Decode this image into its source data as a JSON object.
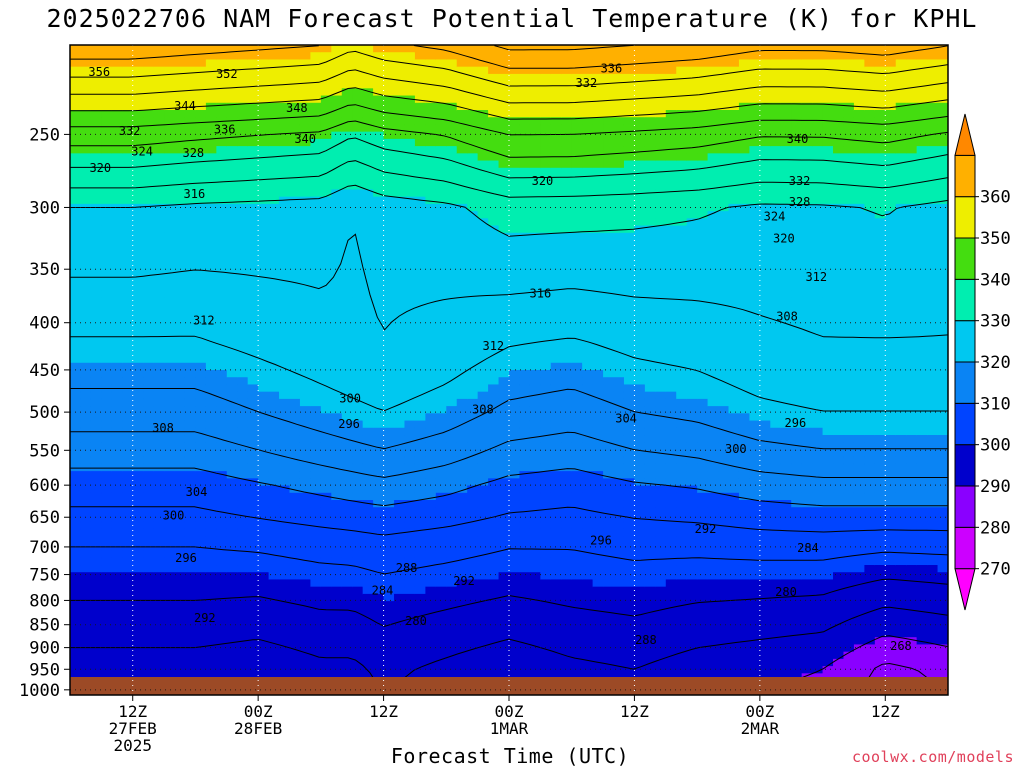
{
  "chart_data": {
    "type": "heatmap",
    "title": "2025022706 NAM Forecast Potential Temperature (K) for KPHL",
    "xlabel": "Forecast Time (UTC)",
    "ylabel": "",
    "credit": "coolwx.com/models",
    "x_ticks": [
      {
        "hour": 6,
        "lines": [
          "12Z",
          "27FEB",
          "2025"
        ]
      },
      {
        "hour": 18,
        "lines": [
          "00Z",
          "28FEB"
        ]
      },
      {
        "hour": 30,
        "lines": [
          "12Z"
        ]
      },
      {
        "hour": 42,
        "lines": [
          "00Z",
          "1MAR"
        ]
      },
      {
        "hour": 54,
        "lines": [
          "12Z"
        ]
      },
      {
        "hour": 66,
        "lines": [
          "00Z",
          "2MAR"
        ]
      },
      {
        "hour": 78,
        "lines": [
          "12Z"
        ]
      }
    ],
    "x_range": [
      0,
      84
    ],
    "y_ticks": [
      250,
      300,
      350,
      400,
      450,
      500,
      550,
      600,
      650,
      700,
      750,
      800,
      850,
      900,
      950,
      1000
    ],
    "y_range_hpa": [
      200,
      1013
    ],
    "y_scale": "log",
    "grid": true,
    "colorbar": {
      "levels": [
        270,
        280,
        290,
        300,
        310,
        320,
        330,
        340,
        350,
        360
      ],
      "colors": [
        "#ff00ff",
        "#cc00ff",
        "#8a00ff",
        "#0000cc",
        "#0044ff",
        "#0a84f4",
        "#00c8f0",
        "#00eeb0",
        "#44dd10",
        "#eeee00",
        "#ffb000",
        "#ff8800"
      ],
      "extend": "both"
    },
    "contour_labels": [
      {
        "value": "356",
        "x": 2.8,
        "p": 214
      },
      {
        "value": "352",
        "x": 15,
        "p": 215
      },
      {
        "value": "344",
        "x": 11,
        "p": 233
      },
      {
        "value": "348",
        "x": 21.7,
        "p": 234
      },
      {
        "value": "336",
        "x": 14.8,
        "p": 247
      },
      {
        "value": "332",
        "x": 5.7,
        "p": 248
      },
      {
        "value": "340",
        "x": 22.5,
        "p": 253
      },
      {
        "value": "324",
        "x": 6.9,
        "p": 261
      },
      {
        "value": "328",
        "x": 11.8,
        "p": 262
      },
      {
        "value": "320",
        "x": 2.9,
        "p": 272
      },
      {
        "value": "316",
        "x": 11.9,
        "p": 290
      },
      {
        "value": "312",
        "x": 12.8,
        "p": 398
      },
      {
        "value": "308",
        "x": 8.9,
        "p": 520
      },
      {
        "value": "304",
        "x": 12.1,
        "p": 610
      },
      {
        "value": "300",
        "x": 9.9,
        "p": 647
      },
      {
        "value": "296",
        "x": 11.1,
        "p": 720
      },
      {
        "value": "292",
        "x": 12.9,
        "p": 836
      },
      {
        "value": "300",
        "x": 26.8,
        "p": 483
      },
      {
        "value": "296",
        "x": 26.7,
        "p": 515
      },
      {
        "value": "288",
        "x": 32.2,
        "p": 738
      },
      {
        "value": "284",
        "x": 29.9,
        "p": 780
      },
      {
        "value": "292",
        "x": 37.7,
        "p": 762
      },
      {
        "value": "280",
        "x": 33.1,
        "p": 842
      },
      {
        "value": "336",
        "x": 51.8,
        "p": 212
      },
      {
        "value": "332",
        "x": 49.4,
        "p": 220
      },
      {
        "value": "320",
        "x": 45.2,
        "p": 281
      },
      {
        "value": "316",
        "x": 45,
        "p": 372
      },
      {
        "value": "312",
        "x": 40.5,
        "p": 424
      },
      {
        "value": "308",
        "x": 39.5,
        "p": 497
      },
      {
        "value": "304",
        "x": 53.2,
        "p": 508
      },
      {
        "value": "296",
        "x": 50.8,
        "p": 689
      },
      {
        "value": "288",
        "x": 55.1,
        "p": 883
      },
      {
        "value": "292",
        "x": 60.8,
        "p": 669
      },
      {
        "value": "300",
        "x": 63.7,
        "p": 548
      },
      {
        "value": "296",
        "x": 69.4,
        "p": 514
      },
      {
        "value": "340",
        "x": 69.6,
        "p": 253
      },
      {
        "value": "332",
        "x": 69.8,
        "p": 281
      },
      {
        "value": "328",
        "x": 69.8,
        "p": 296
      },
      {
        "value": "324",
        "x": 67.4,
        "p": 307
      },
      {
        "value": "320",
        "x": 68.3,
        "p": 324
      },
      {
        "value": "312",
        "x": 71.4,
        "p": 357
      },
      {
        "value": "308",
        "x": 68.6,
        "p": 394
      },
      {
        "value": "284",
        "x": 70.6,
        "p": 702
      },
      {
        "value": "280",
        "x": 68.5,
        "p": 783
      },
      {
        "value": "268",
        "x": 79.5,
        "p": 896
      }
    ]
  }
}
